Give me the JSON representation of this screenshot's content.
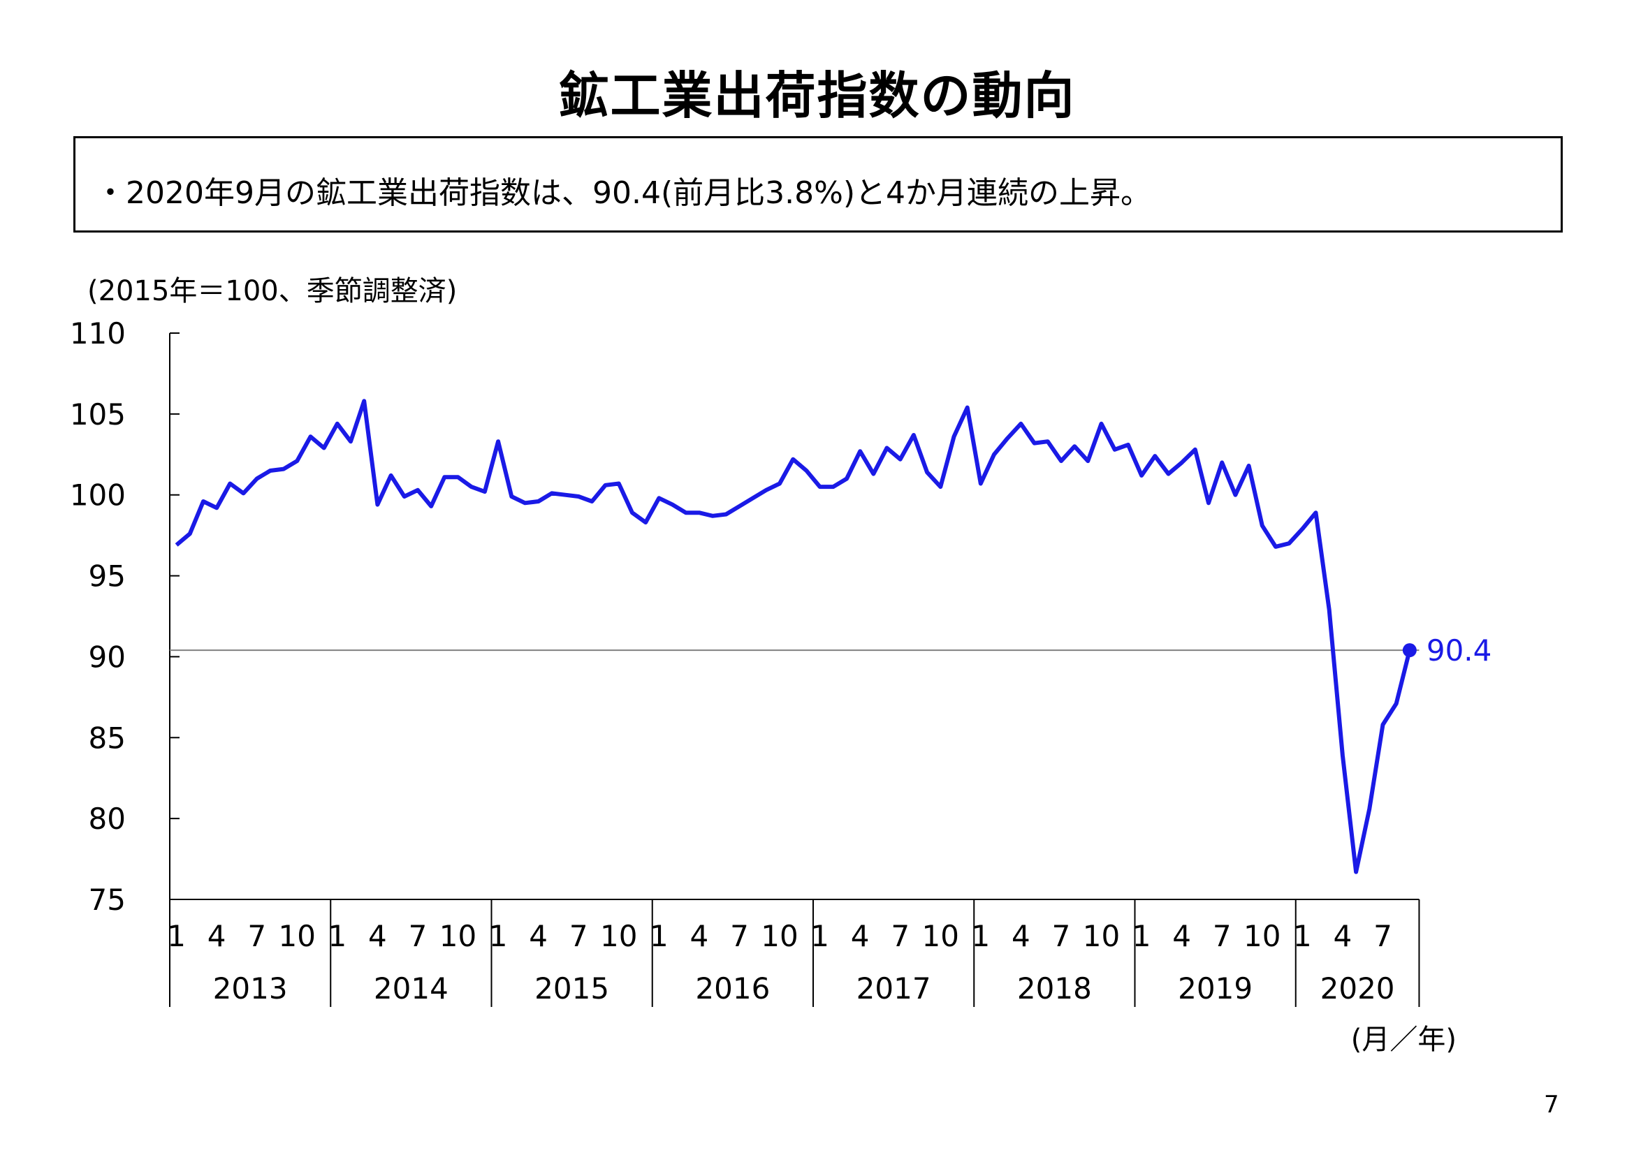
{
  "title": "鉱工業出荷指数の動向",
  "summary": "・2020年9月の鉱工業出荷指数は、90.4(前月比3.8%)と4か月連続の上昇。",
  "page_number": "7",
  "chart_data": {
    "type": "line",
    "unit_note": "(2015年＝100、季節調整済)",
    "xlabel": "(月／年)",
    "ylim": [
      75,
      110
    ],
    "yticks": [
      "75",
      "80",
      "85",
      "90",
      "95",
      "100",
      "105",
      "110"
    ],
    "month_ticks": [
      "1",
      "4",
      "7",
      "10"
    ],
    "years": [
      "2013",
      "2014",
      "2015",
      "2016",
      "2017",
      "2018",
      "2019",
      "2020"
    ],
    "reference_line": 90.4,
    "last_value_label": "90.4",
    "line_color": "#1a1ae6",
    "series": [
      {
        "values": [
          96.9,
          97.6,
          99.6,
          99.2,
          100.7,
          100.1,
          101.0,
          101.5,
          101.6,
          102.1,
          103.6,
          102.9,
          104.4,
          103.3,
          105.8,
          99.4,
          101.2,
          99.9,
          100.3,
          99.3,
          101.1,
          101.1,
          100.5,
          100.2,
          103.3,
          99.9,
          99.5,
          99.6,
          100.1,
          100.0,
          99.9,
          99.6,
          100.6,
          100.7,
          98.9,
          98.3,
          99.8,
          99.4,
          98.9,
          98.9,
          98.7,
          98.8,
          99.3,
          99.8,
          100.3,
          100.7,
          102.2,
          101.5,
          100.5,
          100.5,
          101.0,
          102.7,
          101.3,
          102.9,
          102.2,
          103.7,
          101.4,
          100.5,
          103.6,
          105.4,
          100.7,
          102.5,
          103.5,
          104.4,
          103.2,
          103.3,
          102.1,
          103.0,
          102.1,
          104.4,
          102.8,
          103.1,
          101.2,
          102.4,
          101.3,
          102.0,
          102.8,
          99.5,
          102.0,
          100.0,
          101.8,
          98.1,
          96.8,
          97.0,
          97.9,
          98.9,
          92.9,
          83.9,
          76.7,
          80.6,
          85.8,
          87.1,
          90.4
        ]
      }
    ]
  }
}
